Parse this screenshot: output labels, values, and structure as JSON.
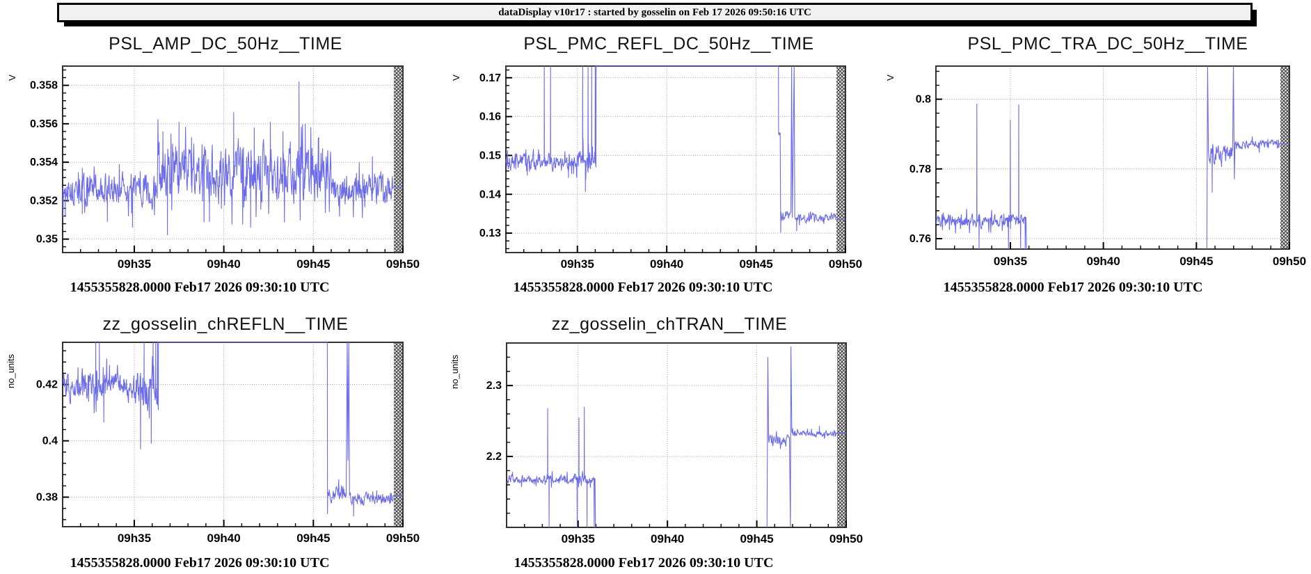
{
  "titlebar": {
    "text": "dataDisplay v10r17 : started by gosselin on Feb 17 2026 09:50:16 UTC"
  },
  "colors": {
    "trace": "#6c6cea",
    "grid": "#999999",
    "frame": "#333333",
    "hatch_bg": "#e6e6e6",
    "hatch_line": "#3a3a3a",
    "titlebar_bg": "#f2f2f2"
  },
  "chart_data": [
    {
      "type": "line",
      "title": "PSL_AMP_DC_50Hz__TIME",
      "ylabel": "V",
      "timestamp": "1455355828.0000 Feb17 2026 09:30:10 UTC",
      "xlim": [
        31,
        50
      ],
      "ylim": [
        0.3493,
        0.359
      ],
      "xticks": {
        "values": [
          35,
          40,
          45,
          50
        ],
        "labels": [
          "09h35",
          "09h40",
          "09h45",
          "09h50"
        ],
        "minor_step": 1
      },
      "yticks": {
        "values": [
          0.35,
          0.352,
          0.354,
          0.356,
          0.358
        ],
        "labels": [
          "0.35",
          "0.352",
          "0.354",
          "0.356",
          "0.358"
        ],
        "minor_step": 0.0004
      },
      "segments": [
        {
          "type": "noise",
          "t0": 31,
          "t1": 36.3,
          "level": 0.3526,
          "amp": 0.0008,
          "spikes": [
            [
              31.15,
              0.3512
            ],
            [
              32.1,
              0.3537
            ],
            [
              33.5,
              0.3509
            ],
            [
              34.9,
              0.3506
            ]
          ]
        },
        {
          "type": "noise",
          "t0": 36.3,
          "t1": 46.0,
          "level": 0.3535,
          "amp": 0.0014,
          "spikes": [
            [
              36.6,
              0.3556
            ],
            [
              36.85,
              0.3502
            ],
            [
              37.5,
              0.3561
            ],
            [
              38.2,
              0.3553
            ],
            [
              39.2,
              0.3509
            ],
            [
              40.55,
              0.3566
            ],
            [
              41.5,
              0.3506
            ],
            [
              41.7,
              0.3558
            ],
            [
              42.6,
              0.3561
            ],
            [
              43.3,
              0.3556
            ],
            [
              44.2,
              0.3582
            ],
            [
              44.55,
              0.356
            ],
            [
              45.3,
              0.3553
            ]
          ]
        },
        {
          "type": "noise",
          "t0": 46.0,
          "t1": 49.45,
          "level": 0.3526,
          "amp": 0.0008,
          "spikes": [
            [
              48.3,
              0.3543
            ]
          ]
        },
        {
          "type": "flat",
          "t0": 49.45,
          "t1": 50,
          "v": 0.3527
        }
      ]
    },
    {
      "type": "line",
      "title": "PSL_PMC_REFL_DC_50Hz__TIME",
      "ylabel": "V",
      "timestamp": "1455355828.0000 Feb17 2026 09:30:10 UTC",
      "xlim": [
        31,
        50
      ],
      "ylim": [
        0.125,
        0.173
      ],
      "xticks": {
        "values": [
          35,
          40,
          45,
          50
        ],
        "labels": [
          "09h35",
          "09h40",
          "09h45",
          "09h50"
        ],
        "minor_step": 1
      },
      "yticks": {
        "values": [
          0.13,
          0.14,
          0.15,
          0.16,
          0.17
        ],
        "labels": [
          "0.13",
          "0.14",
          "0.15",
          "0.16",
          "0.17"
        ],
        "minor_step": 0.002
      },
      "segments": [
        {
          "type": "noise",
          "t0": 31,
          "t1": 35.05,
          "level": 0.148,
          "amp": 0.0022,
          "spikes": [
            [
              32.2,
              0.1448
            ],
            [
              33.15,
              9
            ],
            [
              33.5,
              9
            ],
            [
              34.5,
              0.1442
            ]
          ]
        },
        {
          "type": "noise",
          "t0": 35.05,
          "t1": 36.05,
          "level": 0.1487,
          "amp": 0.003,
          "spikes": [
            [
              35.3,
              9
            ],
            [
              35.45,
              0.1406
            ],
            [
              35.6,
              9
            ],
            [
              35.8,
              9
            ],
            [
              36.0,
              9
            ]
          ]
        },
        {
          "type": "flat",
          "t0": 36.05,
          "t1": 46.25,
          "v": 9
        },
        {
          "type": "noise",
          "t0": 46.26,
          "t1": 46.36,
          "level": 0.1555,
          "amp": 0.0006
        },
        {
          "type": "noise",
          "t0": 46.37,
          "t1": 46.95,
          "level": 0.1345,
          "amp": 0.0013,
          "spikes": [
            [
              46.38,
              0.1301
            ]
          ]
        },
        {
          "type": "point",
          "t": 46.99,
          "v": 9
        },
        {
          "type": "point",
          "t": 47.02,
          "v": 0.134
        },
        {
          "type": "point",
          "t": 47.13,
          "v": 9
        },
        {
          "type": "noise",
          "t0": 47.16,
          "t1": 49.45,
          "level": 0.134,
          "amp": 0.001,
          "spikes": [
            [
              47.27,
              0.1305
            ]
          ]
        },
        {
          "type": "flat",
          "t0": 49.45,
          "t1": 50,
          "v": 0.1335
        }
      ]
    },
    {
      "type": "line",
      "title": "PSL_PMC_TRA_DC_50Hz__TIME",
      "ylabel": "V",
      "timestamp": "1455355828.0000 Feb17 2026 09:30:10 UTC",
      "xlim": [
        31,
        50
      ],
      "ylim": [
        0.757,
        0.8095
      ],
      "xticks": {
        "values": [
          35,
          40,
          45,
          50
        ],
        "labels": [
          "09h35",
          "09h40",
          "09h45",
          "09h50"
        ],
        "minor_step": 1
      },
      "yticks": {
        "values": [
          0.76,
          0.78,
          0.8
        ],
        "labels": [
          "0.76",
          "0.78",
          "0.8"
        ],
        "minor_step": 0.004
      },
      "segments": [
        {
          "type": "noise",
          "t0": 31,
          "t1": 35.85,
          "level": 0.765,
          "amp": 0.0018,
          "spikes": [
            [
              33.2,
              0.7987
            ],
            [
              33.32,
              -9
            ],
            [
              34.9,
              -9
            ],
            [
              35.0,
              0.794
            ],
            [
              35.45,
              0.7985
            ],
            [
              35.55,
              -9
            ],
            [
              35.8,
              -9
            ]
          ]
        },
        {
          "type": "point",
          "t": 35.87,
          "v": -9
        },
        {
          "type": "gap"
        },
        {
          "type": "point",
          "t": 45.56,
          "v": -9
        },
        {
          "type": "point",
          "t": 45.6,
          "v": 9
        },
        {
          "type": "noise",
          "t0": 45.65,
          "t1": 46.95,
          "level": 0.7845,
          "amp": 0.0028,
          "spikes": [
            [
              45.85,
              0.7732
            ]
          ]
        },
        {
          "type": "point",
          "t": 46.99,
          "v": 9
        },
        {
          "type": "point",
          "t": 47.04,
          "v": 0.777
        },
        {
          "type": "noise",
          "t0": 47.08,
          "t1": 49.45,
          "level": 0.787,
          "amp": 0.0012
        },
        {
          "type": "flat",
          "t0": 49.45,
          "t1": 50,
          "v": 0.7872
        }
      ]
    },
    {
      "type": "line",
      "title": "zz_gosselin_chREFLN__TIME",
      "ylabel": "no_units",
      "timestamp": "1455355828.0000 Feb17 2026 09:30:10 UTC",
      "xlim": [
        31,
        50
      ],
      "ylim": [
        0.3695,
        0.435
      ],
      "xticks": {
        "values": [
          35,
          40,
          45,
          50
        ],
        "labels": [
          "09h35",
          "09h40",
          "09h45",
          "09h50"
        ],
        "minor_step": 1
      },
      "yticks": {
        "values": [
          0.38,
          0.4,
          0.42
        ],
        "labels": [
          "0.38",
          "0.4",
          "0.42"
        ],
        "minor_step": 0.004
      },
      "segments": [
        {
          "type": "noise",
          "t0": 31,
          "t1": 35.0,
          "level": 0.4195,
          "amp": 0.005,
          "spikes": [
            [
              32.85,
              9
            ],
            [
              33.05,
              9
            ],
            [
              33.3,
              0.4065
            ]
          ]
        },
        {
          "type": "noise",
          "t0": 35.0,
          "t1": 36.35,
          "level": 0.4185,
          "amp": 0.007,
          "spikes": [
            [
              35.35,
              0.397
            ],
            [
              35.55,
              9
            ],
            [
              35.95,
              0.399
            ],
            [
              36.05,
              9
            ],
            [
              36.2,
              9
            ],
            [
              36.3,
              9
            ]
          ]
        },
        {
          "type": "flat",
          "t0": 36.35,
          "t1": 45.78,
          "v": 9
        },
        {
          "type": "point",
          "t": 45.79,
          "v": 0.374
        },
        {
          "type": "noise",
          "t0": 45.8,
          "t1": 46.85,
          "level": 0.3815,
          "amp": 0.0028
        },
        {
          "type": "point",
          "t": 46.89,
          "v": 9
        },
        {
          "type": "point",
          "t": 46.93,
          "v": 0.393
        },
        {
          "type": "point",
          "t": 46.98,
          "v": 9
        },
        {
          "type": "noise",
          "t0": 47.02,
          "t1": 49.45,
          "level": 0.3793,
          "amp": 0.0019,
          "spikes": [
            [
              47.25,
              0.3732
            ],
            [
              49.3,
              0.3815
            ]
          ]
        },
        {
          "type": "flat",
          "t0": 49.45,
          "t1": 50,
          "v": 0.3805
        }
      ]
    },
    {
      "type": "line",
      "title": "zz_gosselin_chTRAN__TIME",
      "ylabel": "no_units",
      "timestamp": "1455355828.0000 Feb17 2026 09:30:10 UTC",
      "xlim": [
        31,
        50
      ],
      "ylim": [
        2.1,
        2.36
      ],
      "xticks": {
        "values": [
          35,
          40,
          45,
          50
        ],
        "labels": [
          "09h35",
          "09h40",
          "09h45",
          "09h50"
        ],
        "minor_step": 1
      },
      "yticks": {
        "values": [
          2.2,
          2.3
        ],
        "labels": [
          "2.2",
          "2.3"
        ],
        "minor_step": 0.02
      },
      "segments": [
        {
          "type": "noise",
          "t0": 31,
          "t1": 35.95,
          "level": 2.168,
          "amp": 0.006,
          "spikes": [
            [
              33.3,
              2.268
            ],
            [
              33.38,
              -9
            ],
            [
              34.95,
              -9
            ],
            [
              35.05,
              2.255
            ],
            [
              35.35,
              2.27
            ],
            [
              35.5,
              -9
            ],
            [
              35.9,
              -9
            ]
          ]
        },
        {
          "type": "point",
          "t": 35.97,
          "v": -9
        },
        {
          "type": "gap"
        },
        {
          "type": "point",
          "t": 45.57,
          "v": -9
        },
        {
          "type": "point",
          "t": 45.62,
          "v": 2.34
        },
        {
          "type": "noise",
          "t0": 45.66,
          "t1": 46.84,
          "level": 2.222,
          "amp": 0.007
        },
        {
          "type": "point",
          "t": 46.88,
          "v": -9
        },
        {
          "type": "point",
          "t": 46.91,
          "v": 2.355
        },
        {
          "type": "noise",
          "t0": 46.96,
          "t1": 49.45,
          "level": 2.232,
          "amp": 0.004,
          "spikes": [
            [
              48.5,
              2.243
            ]
          ]
        },
        {
          "type": "flat",
          "t0": 49.45,
          "t1": 50,
          "v": 2.233
        }
      ]
    }
  ]
}
